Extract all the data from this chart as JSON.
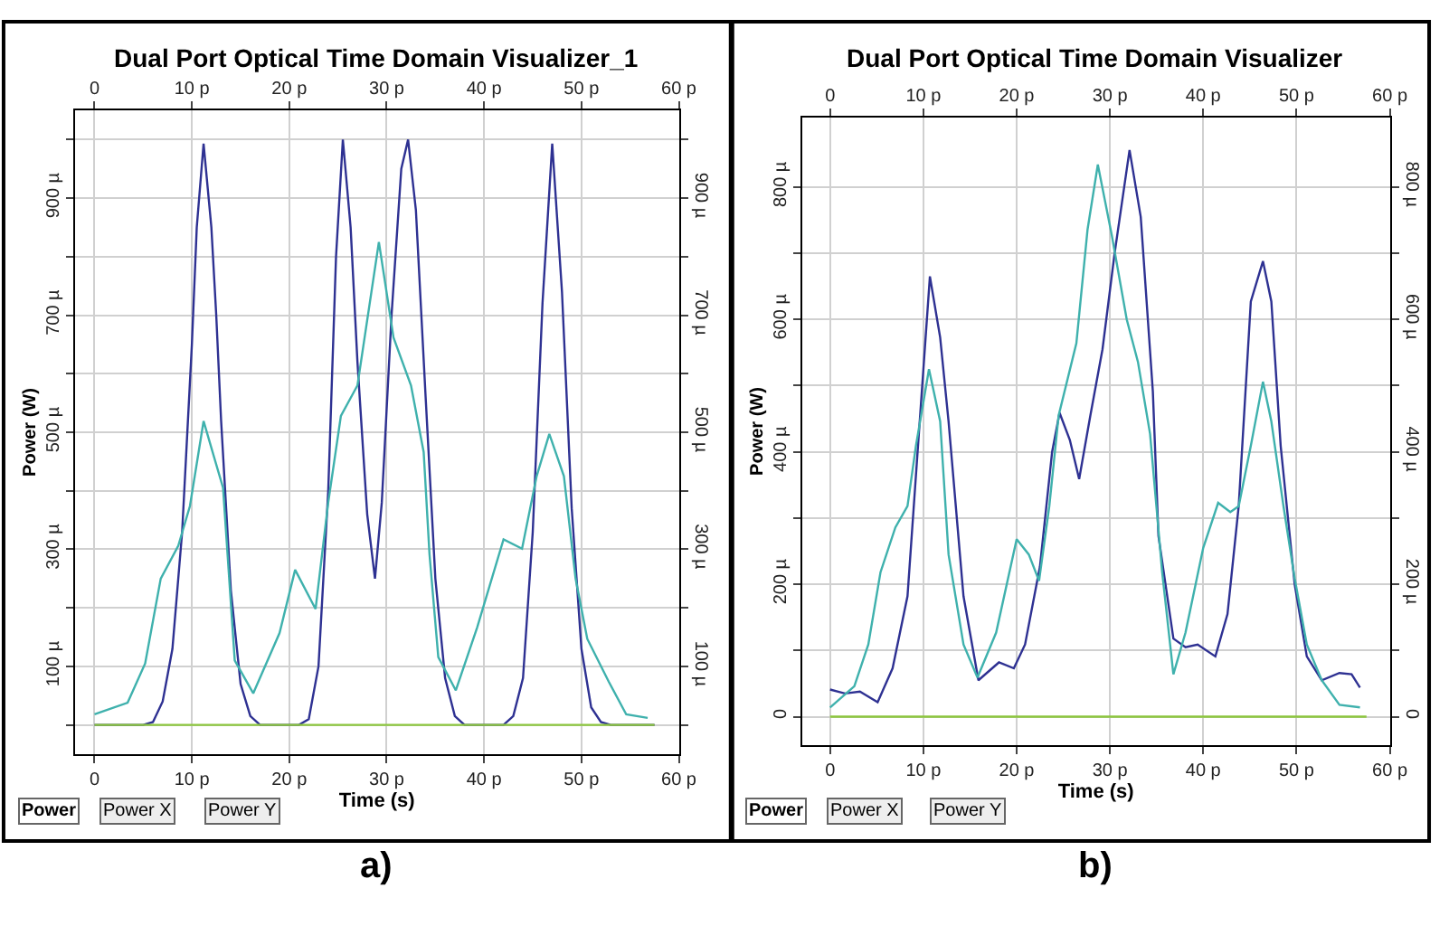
{
  "chart_data": [
    {
      "type": "line",
      "title": "Dual Port Optical Time Domain Visualizer_1",
      "xlabel": "Time (s)",
      "ylabel": "Power (W)",
      "grid": true,
      "xlim": [
        -2,
        60
      ],
      "ylim": [
        -50,
        1050
      ],
      "x2lim": [
        -2,
        60
      ],
      "y2lim": [
        -50,
        1050
      ],
      "xticks": [
        0,
        {
          "value": 10,
          "label": "10 p"
        },
        {
          "value": 20,
          "label": "20 p"
        },
        {
          "value": 30,
          "label": "30 p"
        },
        {
          "value": 40,
          "label": "40 p"
        },
        {
          "value": 50,
          "label": "50 p"
        },
        {
          "value": 60,
          "label": "60 p"
        }
      ],
      "x2ticks": [
        0,
        {
          "value": 10,
          "label": "10 p"
        },
        {
          "value": 20,
          "label": "20 p"
        },
        {
          "value": 30,
          "label": "30 p"
        },
        {
          "value": 40,
          "label": "40 p"
        },
        {
          "value": 50,
          "label": "50 p"
        },
        {
          "value": 60,
          "label": "60 p"
        }
      ],
      "yticks": [
        {
          "value": 0,
          "label": null
        },
        {
          "value": 100,
          "label": "100 µ"
        },
        {
          "value": 200,
          "label": null
        },
        {
          "value": 300,
          "label": "300 µ"
        },
        {
          "value": 400,
          "label": null
        },
        {
          "value": 500,
          "label": "500 µ"
        },
        {
          "value": 600,
          "label": null
        },
        {
          "value": 700,
          "label": "700 µ"
        },
        {
          "value": 800,
          "label": null
        },
        {
          "value": 900,
          "label": "900 µ"
        },
        {
          "value": 1000,
          "label": null
        }
      ],
      "y2ticks": [
        {
          "value": 0,
          "label": null
        },
        {
          "value": 100,
          "label": "100 µ"
        },
        {
          "value": 200,
          "label": null
        },
        {
          "value": 300,
          "label": "300 µ"
        },
        {
          "value": 400,
          "label": null
        },
        {
          "value": 500,
          "label": "500 µ"
        },
        {
          "value": 600,
          "label": null
        },
        {
          "value": 700,
          "label": "700 µ"
        },
        {
          "value": 800,
          "label": null
        },
        {
          "value": 900,
          "label": "900 µ"
        },
        {
          "value": 1000,
          "label": null
        }
      ],
      "series": [
        {
          "color": "#2e3192",
          "x": [
            0,
            5,
            6,
            7,
            8,
            9,
            10,
            10.5,
            11.2,
            12,
            12.5,
            13,
            14,
            15,
            16,
            17,
            21,
            22,
            23,
            24,
            24.8,
            25.5,
            26.3,
            27,
            28,
            28.8,
            29.5,
            30.5,
            31.5,
            32.2,
            33,
            34,
            35,
            36,
            37,
            38,
            42,
            43,
            44,
            45,
            46,
            47,
            48,
            49,
            50,
            51,
            52,
            53,
            57.5
          ],
          "values": [
            0,
            0,
            5,
            40,
            130,
            330,
            650,
            850,
            993,
            850,
            700,
            520,
            230,
            70,
            15,
            0,
            0,
            10,
            100,
            400,
            800,
            1000,
            850,
            620,
            360,
            250,
            380,
            700,
            950,
            1000,
            880,
            560,
            250,
            80,
            15,
            0,
            0,
            15,
            80,
            330,
            720,
            993,
            740,
            370,
            130,
            30,
            5,
            0,
            0
          ]
        },
        {
          "color": "#3fb1ad",
          "x": [
            0,
            3.4,
            5.2,
            6.8,
            8.6,
            9.8,
            11.2,
            13.2,
            14.4,
            16.3,
            19,
            20.6,
            22.7,
            24,
            25.3,
            27,
            29.2,
            30.7,
            32.5,
            33.8,
            34.4,
            35.3,
            37.1,
            39.3,
            42,
            43.9,
            45.4,
            46.7,
            48.2,
            49.4,
            50.6,
            52.8,
            54.6,
            56.8
          ],
          "values": [
            18,
            38,
            105,
            250,
            306,
            374,
            519,
            405,
            110,
            54,
            157,
            265,
            198,
            380,
            528,
            580,
            825,
            662,
            580,
            466,
            291,
            116,
            59,
            167,
            317,
            301,
            425,
            497,
            425,
            250,
            147,
            74,
            18,
            12
          ]
        },
        {
          "color": "#8cc63e",
          "x": [
            0,
            57.5
          ],
          "values": [
            0,
            0
          ]
        }
      ],
      "annotations": [
        "Power",
        "Power X",
        "Power Y",
        "a)"
      ]
    },
    {
      "type": "line",
      "title": "Dual Port Optical Time Domain Visualizer",
      "xlabel": "Time (s)",
      "ylabel": "Power (W)",
      "grid": true,
      "xlim": [
        -3,
        60
      ],
      "ylim": [
        -43,
        905
      ],
      "x2lim": [
        -3,
        60
      ],
      "y2lim": [
        -43,
        905
      ],
      "xticks": [
        0,
        {
          "value": 10,
          "label": "10 p"
        },
        {
          "value": 20,
          "label": "20 p"
        },
        {
          "value": 30,
          "label": "30 p"
        },
        {
          "value": 40,
          "label": "40 p"
        },
        {
          "value": 50,
          "label": "50 p"
        },
        {
          "value": 60,
          "label": "60 p"
        }
      ],
      "x2ticks": [
        0,
        {
          "value": 10,
          "label": "10 p"
        },
        {
          "value": 20,
          "label": "20 p"
        },
        {
          "value": 30,
          "label": "30 p"
        },
        {
          "value": 40,
          "label": "40 p"
        },
        {
          "value": 50,
          "label": "50 p"
        },
        {
          "value": 60,
          "label": "60 p"
        }
      ],
      "yticks": [
        0,
        {
          "value": 100,
          "label": null
        },
        {
          "value": 200,
          "label": "200 µ"
        },
        {
          "value": 300,
          "label": null
        },
        {
          "value": 400,
          "label": "400 µ"
        },
        {
          "value": 500,
          "label": null
        },
        {
          "value": 600,
          "label": "600 µ"
        },
        {
          "value": 700,
          "label": null
        },
        {
          "value": 800,
          "label": "800 µ"
        }
      ],
      "y2ticks": [
        0,
        {
          "value": 100,
          "label": null
        },
        {
          "value": 200,
          "label": "200 µ"
        },
        {
          "value": 300,
          "label": null
        },
        {
          "value": 400,
          "label": "400 µ"
        },
        {
          "value": 500,
          "label": null
        },
        {
          "value": 600,
          "label": "600 µ"
        },
        {
          "value": 700,
          "label": null
        },
        {
          "value": 800,
          "label": "800 µ"
        }
      ],
      "series": [
        {
          "color": "#2e3192",
          "x": [
            0,
            1.6,
            3.2,
            5.1,
            6.7,
            8.3,
            9.2,
            10.7,
            11.8,
            12.7,
            14.3,
            15.9,
            18.1,
            19.7,
            20.9,
            22.5,
            23.8,
            24.6,
            25.7,
            26.7,
            27.9,
            29.2,
            30.5,
            32.1,
            33.3,
            34.6,
            35.2,
            36.8,
            38.1,
            39.4,
            41.3,
            42.6,
            43.8,
            45.1,
            46.4,
            47.3,
            48.3,
            49.8,
            51.1,
            52.7,
            54.6,
            55.9,
            56.8
          ],
          "values": [
            41,
            35,
            38,
            22,
            73,
            182,
            364,
            665,
            573,
            446,
            182,
            55,
            82,
            73,
            109,
            227,
            400,
            459,
            418,
            359,
            455,
            555,
            700,
            856,
            755,
            491,
            273,
            118,
            105,
            109,
            91,
            155,
            318,
            627,
            688,
            627,
            409,
            200,
            91,
            55,
            66,
            64,
            44
          ]
        },
        {
          "color": "#3fb1ad",
          "x": [
            0,
            2.6,
            4.1,
            5.4,
            7,
            8.3,
            9.2,
            10.6,
            11.8,
            12.7,
            14.3,
            15.8,
            17.8,
            20,
            21.3,
            22.4,
            23.5,
            24.5,
            26.4,
            27.6,
            28.7,
            30.2,
            31.8,
            33,
            34.3,
            35.6,
            36.8,
            38.1,
            40,
            41.6,
            42.9,
            43.8,
            45.1,
            46.4,
            47.3,
            48.6,
            49.8,
            51.1,
            52.7,
            54.6,
            56.8
          ],
          "values": [
            14,
            46,
            109,
            218,
            286,
            318,
            409,
            525,
            446,
            245,
            109,
            59,
            127,
            268,
            245,
            205,
            318,
            455,
            564,
            736,
            834,
            727,
            600,
            536,
            427,
            218,
            64,
            127,
            255,
            323,
            309,
            318,
            409,
            506,
            446,
            318,
            209,
            109,
            55,
            18,
            14
          ]
        },
        {
          "color": "#8cc63e",
          "x": [
            0,
            57.5
          ],
          "values": [
            0,
            0
          ]
        }
      ],
      "annotations": [
        "Power",
        "Power X",
        "Power Y",
        "b)"
      ]
    }
  ]
}
